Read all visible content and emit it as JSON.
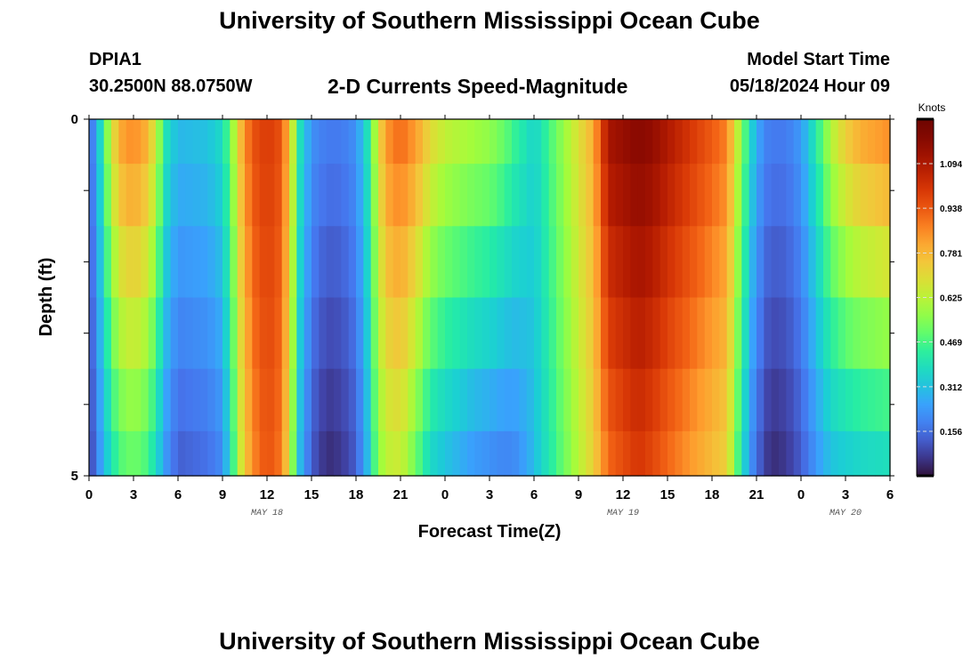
{
  "header": {
    "title": "University of Southern Mississippi Ocean Cube",
    "station_id": "DPIA1",
    "coords": "30.2500N  88.0750W",
    "model_start_label": "Model Start Time",
    "model_start_value": "05/18/2024 Hour 09"
  },
  "footer": {
    "title": "University of Southern Mississippi Ocean Cube"
  },
  "chart_data": {
    "type": "heatmap",
    "title": "2-D Currents Speed-Magnitude",
    "xlabel": "Forecast Time(Z)",
    "ylabel": "Depth (ft)",
    "x_tick_labels": [
      "0",
      "3",
      "6",
      "9",
      "12",
      "15",
      "18",
      "21",
      "0",
      "3",
      "6",
      "9",
      "12",
      "15",
      "18",
      "21",
      "0",
      "3",
      "6"
    ],
    "date_labels": [
      {
        "label": "MAY 18",
        "x": 12
      },
      {
        "label": "MAY 19",
        "x": 36
      },
      {
        "label": "MAY 20",
        "x": 51
      }
    ],
    "x_range": [
      0,
      54
    ],
    "y_tick_labels": [
      "0",
      "5"
    ],
    "y_range": [
      0,
      5
    ],
    "colorbar": {
      "units": "Knots",
      "ticks": [
        "0.156",
        "0.312",
        "0.469",
        "0.625",
        "0.781",
        "0.938",
        "1.094"
      ],
      "tick_values": [
        0.156,
        0.312,
        0.469,
        0.625,
        0.781,
        0.938,
        1.094
      ],
      "range": [
        0.0,
        1.25
      ]
    },
    "depth_levels": [
      0.25,
      1.0,
      2.0,
      3.0,
      4.0,
      4.75
    ],
    "speed_keyframes_surface": [
      [
        0,
        0.12
      ],
      [
        0.6,
        0.3
      ],
      [
        1.2,
        0.55
      ],
      [
        2,
        0.82
      ],
      [
        3,
        0.88
      ],
      [
        4,
        0.8
      ],
      [
        4.6,
        0.62
      ],
      [
        5.2,
        0.4
      ],
      [
        6,
        0.3
      ],
      [
        8,
        0.32
      ],
      [
        9,
        0.38
      ],
      [
        9.6,
        0.55
      ],
      [
        10.3,
        0.8
      ],
      [
        11,
        0.95
      ],
      [
        12,
        1.0
      ],
      [
        13,
        0.95
      ],
      [
        13.6,
        0.72
      ],
      [
        14.2,
        0.4
      ],
      [
        15,
        0.22
      ],
      [
        16,
        0.18
      ],
      [
        17,
        0.18
      ],
      [
        18,
        0.22
      ],
      [
        18.8,
        0.4
      ],
      [
        19.4,
        0.65
      ],
      [
        20,
        0.85
      ],
      [
        21,
        0.92
      ],
      [
        22,
        0.85
      ],
      [
        23,
        0.72
      ],
      [
        24,
        0.65
      ],
      [
        26,
        0.6
      ],
      [
        27,
        0.58
      ],
      [
        28,
        0.52
      ],
      [
        28.8,
        0.45
      ],
      [
        29.5,
        0.4
      ],
      [
        30,
        0.35
      ],
      [
        34,
        0.8
      ],
      [
        35,
        1.12
      ],
      [
        36,
        1.15
      ],
      [
        37,
        1.18
      ],
      [
        38,
        1.16
      ],
      [
        39,
        1.1
      ],
      [
        43,
        0.88
      ],
      [
        44,
        0.55
      ],
      [
        44.8,
        0.32
      ],
      [
        45.5,
        0.2
      ],
      [
        46,
        0.18
      ],
      [
        47,
        0.18
      ],
      [
        48,
        0.24
      ],
      [
        49,
        0.42
      ],
      [
        50,
        0.62
      ],
      [
        51,
        0.75
      ],
      [
        52,
        0.82
      ],
      [
        54,
        0.88
      ]
    ],
    "speed_keyframes_bottom": [
      [
        0,
        0.06
      ],
      [
        0.6,
        0.2
      ],
      [
        1.2,
        0.32
      ],
      [
        2,
        0.46
      ],
      [
        3,
        0.5
      ],
      [
        4,
        0.45
      ],
      [
        4.6,
        0.34
      ],
      [
        5.2,
        0.22
      ],
      [
        6,
        0.12
      ],
      [
        8,
        0.15
      ],
      [
        9,
        0.2
      ],
      [
        9.6,
        0.4
      ],
      [
        10.3,
        0.68
      ],
      [
        11,
        0.85
      ],
      [
        12,
        0.95
      ],
      [
        13,
        0.88
      ],
      [
        13.6,
        0.62
      ],
      [
        14.2,
        0.3
      ],
      [
        15,
        0.12
      ],
      [
        16,
        0.04
      ],
      [
        17,
        0.06
      ],
      [
        18,
        0.12
      ],
      [
        18.8,
        0.3
      ],
      [
        19.4,
        0.52
      ],
      [
        20,
        0.62
      ],
      [
        21,
        0.64
      ],
      [
        22,
        0.5
      ],
      [
        23,
        0.35
      ],
      [
        24,
        0.3
      ],
      [
        26,
        0.22
      ],
      [
        27,
        0.2
      ],
      [
        28,
        0.18
      ],
      [
        28.8,
        0.2
      ],
      [
        29.5,
        0.25
      ],
      [
        30,
        0.3
      ],
      [
        34,
        0.72
      ],
      [
        35,
        0.9
      ],
      [
        36,
        0.95
      ],
      [
        37,
        1.0
      ],
      [
        38,
        0.96
      ],
      [
        39,
        0.9
      ],
      [
        43,
        0.72
      ],
      [
        44,
        0.38
      ],
      [
        44.8,
        0.18
      ],
      [
        45.5,
        0.08
      ],
      [
        46,
        0.04
      ],
      [
        47,
        0.06
      ],
      [
        48,
        0.12
      ],
      [
        49,
        0.22
      ],
      [
        50,
        0.3
      ],
      [
        51,
        0.32
      ],
      [
        52,
        0.34
      ],
      [
        54,
        0.36
      ]
    ]
  }
}
